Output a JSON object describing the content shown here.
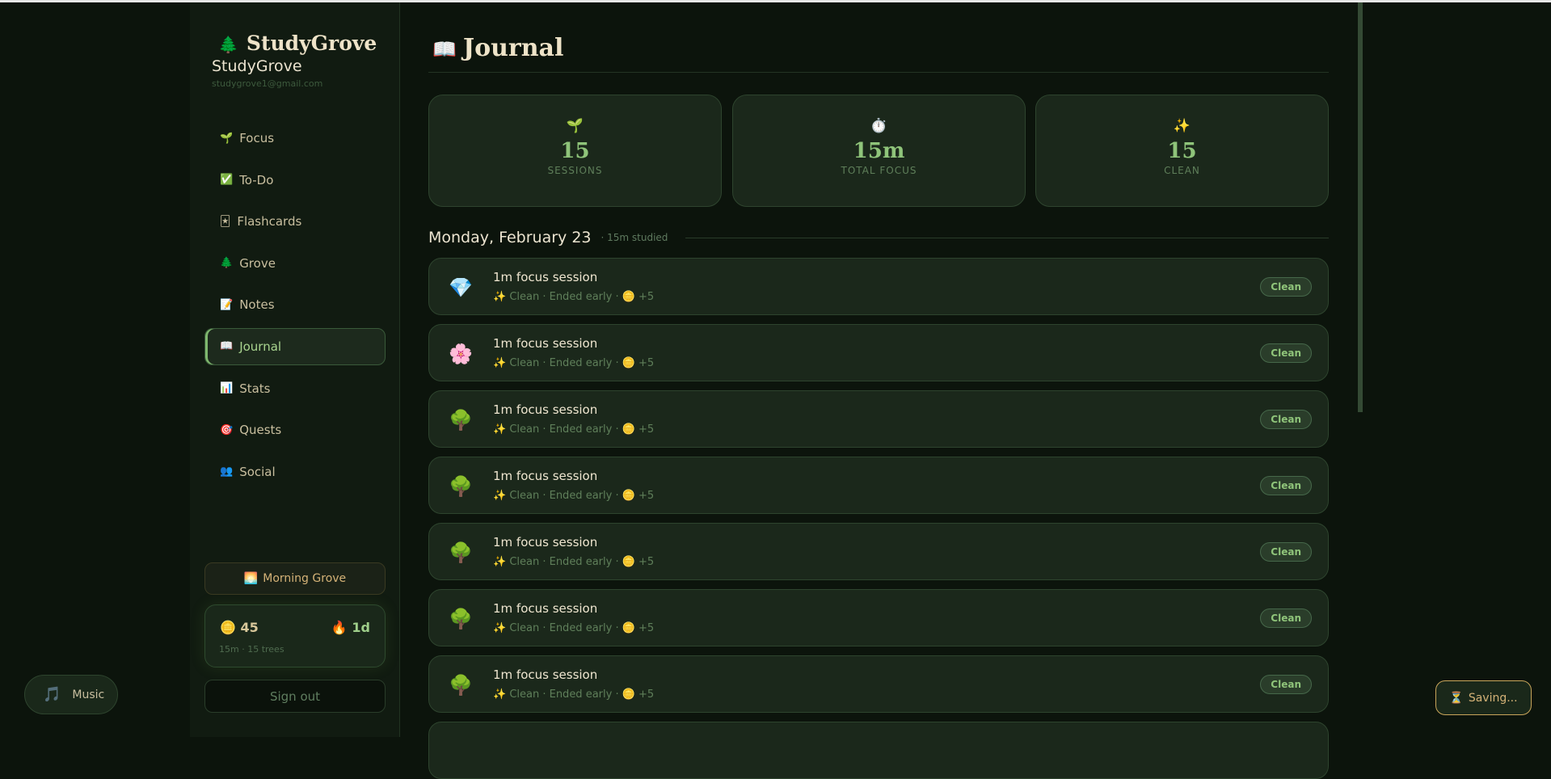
{
  "sidebar": {
    "brand": "StudyGrove",
    "brand_icon": "🌲",
    "user_name": "StudyGrove",
    "user_email": "studygrove1@gmail.com",
    "nav": [
      {
        "icon": "🌱",
        "label": "Focus"
      },
      {
        "icon": "✅",
        "label": "To-Do"
      },
      {
        "icon": "🃏",
        "label": "Flashcards"
      },
      {
        "icon": "🌲",
        "label": "Grove"
      },
      {
        "icon": "📝",
        "label": "Notes"
      },
      {
        "icon": "📖",
        "label": "Journal",
        "active": true
      },
      {
        "icon": "📊",
        "label": "Stats"
      },
      {
        "icon": "🎯",
        "label": "Quests"
      },
      {
        "icon": "👥",
        "label": "Social"
      }
    ],
    "theme_button": {
      "icon": "🌅",
      "label": "Morning Grove"
    },
    "wallet": {
      "coin_icon": "🪙",
      "coins": "45",
      "streak_icon": "🔥",
      "streak": "1d",
      "summary": "15m · 15 trees"
    },
    "sign_out": "Sign out"
  },
  "main": {
    "title_icon": "📖",
    "title": "Journal",
    "stats": [
      {
        "icon": "🌱",
        "value": "15",
        "label": "SESSIONS"
      },
      {
        "icon": "⏱️",
        "value": "15m",
        "label": "TOTAL FOCUS"
      },
      {
        "icon": "✨",
        "value": "15",
        "label": "CLEAN"
      }
    ],
    "day": {
      "date": "Monday, February 23",
      "meta": "· 15m studied"
    },
    "sessions": [
      {
        "icon": "💎",
        "title": "1m focus session",
        "meta": "✨ Clean · Ended early · 🪙 +5",
        "badge": "Clean"
      },
      {
        "icon": "🌸",
        "title": "1m focus session",
        "meta": "✨ Clean · Ended early · 🪙 +5",
        "badge": "Clean"
      },
      {
        "icon": "🌳",
        "title": "1m focus session",
        "meta": "✨ Clean · Ended early · 🪙 +5",
        "badge": "Clean"
      },
      {
        "icon": "🌳",
        "title": "1m focus session",
        "meta": "✨ Clean · Ended early · 🪙 +5",
        "badge": "Clean"
      },
      {
        "icon": "🌳",
        "title": "1m focus session",
        "meta": "✨ Clean · Ended early · 🪙 +5",
        "badge": "Clean"
      },
      {
        "icon": "🌳",
        "title": "1m focus session",
        "meta": "✨ Clean · Ended early · 🪙 +5",
        "badge": "Clean"
      },
      {
        "icon": "🌳",
        "title": "1m focus session",
        "meta": "✨ Clean · Ended early · 🪙 +5",
        "badge": "Clean"
      }
    ]
  },
  "music": {
    "icon": "🎵",
    "label": "Music"
  },
  "saving": {
    "icon": "⏳",
    "label": "Saving..."
  }
}
